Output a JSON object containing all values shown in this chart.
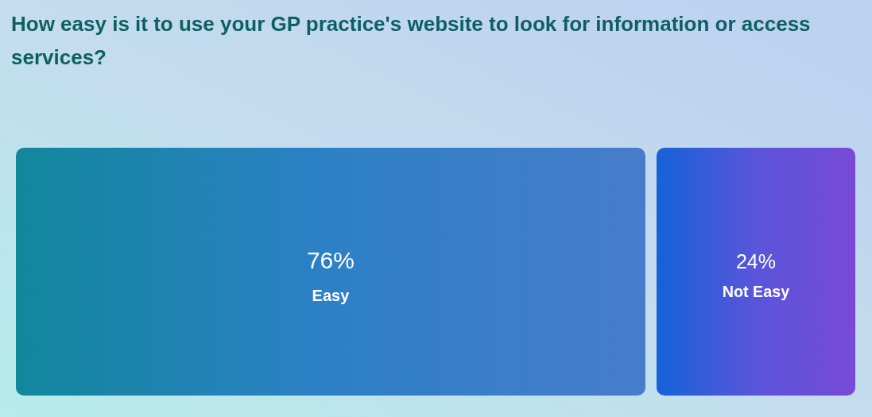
{
  "chart_data": {
    "type": "other",
    "title": "How easy is it to use your GP practice's website to look for information or access services?",
    "categories": [
      "Easy",
      "Not Easy"
    ],
    "values": [
      76,
      24
    ],
    "colors": [
      "#2d80c6",
      "#5a55da"
    ],
    "value_labels": [
      "76%",
      "24%"
    ]
  }
}
